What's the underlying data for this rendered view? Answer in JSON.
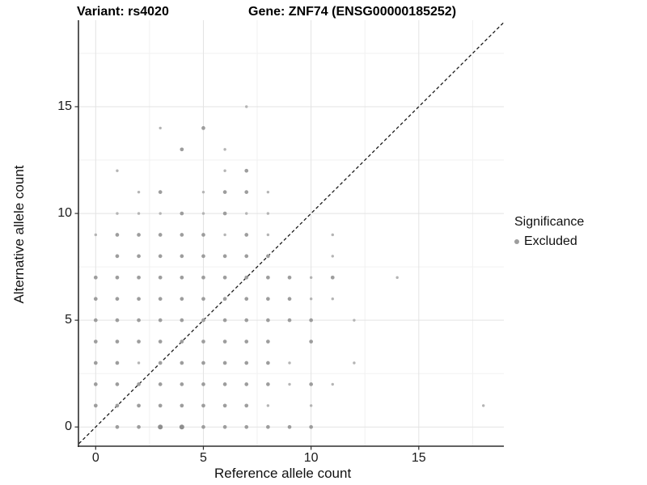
{
  "header": {
    "variant_title": "Variant: rs4020",
    "gene_title": "Gene: ZNF74 (ENSG00000185252)"
  },
  "legend": {
    "title": "Significance",
    "items": [
      {
        "label": "Excluded",
        "color": "#9d9d9d"
      }
    ]
  },
  "colors": {
    "point_small": "#b4b4b4",
    "point_medium": "#9d9d9d",
    "point_large": "#8e8e8e",
    "grid_major": "#e3e3e3",
    "grid_minor": "#f1f1f1",
    "axis_line": "#2f2f2f",
    "reference_line": "#1a1a1a",
    "background": "#ffffff"
  },
  "chart_data": {
    "type": "scatter",
    "title": "Variant: rs4020 — Gene: ZNF74 (ENSG00000185252)",
    "xlabel": "Reference allele count",
    "ylabel": "Alternative allele count",
    "x_ticks": [
      0,
      5,
      10,
      15
    ],
    "y_ticks": [
      0,
      5,
      10,
      15
    ],
    "x_minor_ticks": [
      2.5,
      7.5,
      12.5,
      17.5
    ],
    "y_minor_ticks": [
      2.5,
      7.5,
      12.5,
      17.5
    ],
    "xlim": [
      -0.8,
      18.95
    ],
    "ylim": [
      -0.9,
      19.05
    ],
    "grid": true,
    "legend_position": "right",
    "identity_line": {
      "show": true,
      "style": "dashed",
      "slope": 1,
      "intercept": 0
    },
    "series_name": "Excluded",
    "points_format": "[reference_allele_count, alternative_allele_count, size_class]",
    "points": [
      [
        1,
        0,
        2
      ],
      [
        2,
        0,
        2
      ],
      [
        3,
        0,
        3
      ],
      [
        4,
        0,
        3
      ],
      [
        5,
        0,
        2
      ],
      [
        6,
        0,
        2
      ],
      [
        7,
        0,
        2
      ],
      [
        8,
        0,
        2
      ],
      [
        9,
        0,
        2
      ],
      [
        10,
        0,
        2
      ],
      [
        0,
        1,
        2
      ],
      [
        1,
        1,
        2
      ],
      [
        2,
        1,
        2
      ],
      [
        3,
        1,
        2
      ],
      [
        4,
        1,
        2
      ],
      [
        5,
        1,
        2
      ],
      [
        6,
        1,
        2
      ],
      [
        7,
        1,
        2
      ],
      [
        8,
        1,
        1
      ],
      [
        10,
        1,
        1
      ],
      [
        18,
        1,
        1
      ],
      [
        0,
        2,
        2
      ],
      [
        1,
        2,
        2
      ],
      [
        2,
        2,
        2
      ],
      [
        3,
        2,
        2
      ],
      [
        4,
        2,
        2
      ],
      [
        5,
        2,
        2
      ],
      [
        6,
        2,
        2
      ],
      [
        7,
        2,
        2
      ],
      [
        8,
        2,
        2
      ],
      [
        9,
        2,
        1
      ],
      [
        10,
        2,
        2
      ],
      [
        11,
        2,
        1
      ],
      [
        0,
        3,
        2
      ],
      [
        1,
        3,
        2
      ],
      [
        2,
        3,
        1
      ],
      [
        3,
        3,
        2
      ],
      [
        4,
        3,
        2
      ],
      [
        5,
        3,
        2
      ],
      [
        6,
        3,
        2
      ],
      [
        7,
        3,
        2
      ],
      [
        8,
        3,
        2
      ],
      [
        9,
        3,
        1
      ],
      [
        12,
        3,
        1
      ],
      [
        0,
        4,
        2
      ],
      [
        1,
        4,
        2
      ],
      [
        2,
        4,
        2
      ],
      [
        3,
        4,
        2
      ],
      [
        4,
        4,
        2
      ],
      [
        5,
        4,
        2
      ],
      [
        6,
        4,
        2
      ],
      [
        7,
        4,
        2
      ],
      [
        8,
        4,
        2
      ],
      [
        10,
        4,
        2
      ],
      [
        0,
        5,
        2
      ],
      [
        1,
        5,
        2
      ],
      [
        2,
        5,
        2
      ],
      [
        3,
        5,
        2
      ],
      [
        4,
        5,
        2
      ],
      [
        5,
        5,
        2
      ],
      [
        6,
        5,
        2
      ],
      [
        7,
        5,
        2
      ],
      [
        8,
        5,
        2
      ],
      [
        9,
        5,
        2
      ],
      [
        10,
        5,
        2
      ],
      [
        12,
        5,
        1
      ],
      [
        0,
        6,
        2
      ],
      [
        1,
        6,
        2
      ],
      [
        2,
        6,
        2
      ],
      [
        3,
        6,
        2
      ],
      [
        4,
        6,
        2
      ],
      [
        5,
        6,
        2
      ],
      [
        6,
        6,
        2
      ],
      [
        7,
        6,
        2
      ],
      [
        8,
        6,
        2
      ],
      [
        9,
        6,
        2
      ],
      [
        10,
        6,
        1
      ],
      [
        11,
        6,
        1
      ],
      [
        0,
        7,
        2
      ],
      [
        1,
        7,
        2
      ],
      [
        2,
        7,
        2
      ],
      [
        3,
        7,
        2
      ],
      [
        4,
        7,
        2
      ],
      [
        5,
        7,
        2
      ],
      [
        6,
        7,
        2
      ],
      [
        7,
        7,
        2
      ],
      [
        8,
        7,
        2
      ],
      [
        9,
        7,
        2
      ],
      [
        10,
        7,
        1
      ],
      [
        11,
        7,
        2
      ],
      [
        14,
        7,
        1
      ],
      [
        1,
        8,
        2
      ],
      [
        2,
        8,
        2
      ],
      [
        3,
        8,
        2
      ],
      [
        4,
        8,
        2
      ],
      [
        5,
        8,
        2
      ],
      [
        6,
        8,
        2
      ],
      [
        7,
        8,
        2
      ],
      [
        8,
        8,
        2
      ],
      [
        11,
        8,
        1
      ],
      [
        0,
        9,
        1
      ],
      [
        1,
        9,
        2
      ],
      [
        2,
        9,
        2
      ],
      [
        3,
        9,
        2
      ],
      [
        4,
        9,
        2
      ],
      [
        5,
        9,
        2
      ],
      [
        6,
        9,
        1
      ],
      [
        7,
        9,
        2
      ],
      [
        8,
        9,
        1
      ],
      [
        11,
        9,
        1
      ],
      [
        1,
        10,
        1
      ],
      [
        2,
        10,
        1
      ],
      [
        3,
        10,
        1
      ],
      [
        4,
        10,
        2
      ],
      [
        5,
        10,
        1
      ],
      [
        6,
        10,
        2
      ],
      [
        7,
        10,
        1
      ],
      [
        8,
        10,
        1
      ],
      [
        2,
        11,
        1
      ],
      [
        3,
        11,
        2
      ],
      [
        5,
        11,
        1
      ],
      [
        6,
        11,
        2
      ],
      [
        7,
        11,
        2
      ],
      [
        8,
        11,
        1
      ],
      [
        1,
        12,
        1
      ],
      [
        6,
        12,
        1
      ],
      [
        7,
        12,
        2
      ],
      [
        4,
        13,
        2
      ],
      [
        6,
        13,
        1
      ],
      [
        3,
        14,
        1
      ],
      [
        5,
        14,
        2
      ],
      [
        7,
        15,
        1
      ]
    ]
  }
}
